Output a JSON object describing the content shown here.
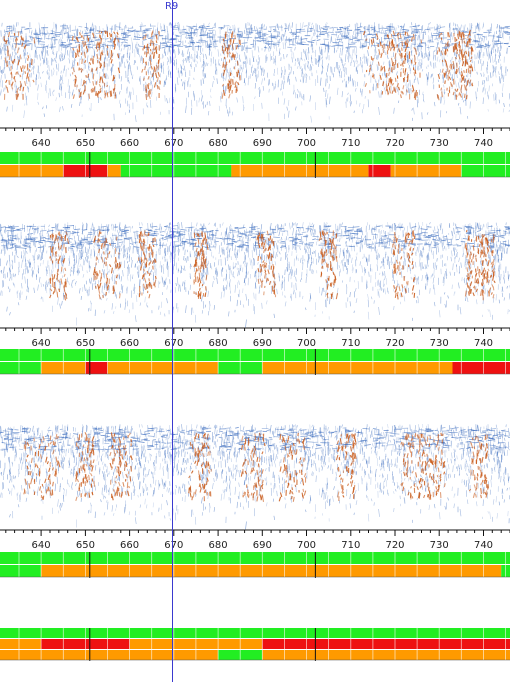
{
  "marker": {
    "label": "R9",
    "position_units": 669.5
  },
  "axis": {
    "min": 630.7,
    "max": 746,
    "labels": [
      "640",
      "650",
      "660",
      "670",
      "680",
      "690",
      "700",
      "710",
      "720",
      "730",
      "740"
    ],
    "major_step": 10,
    "minor_step": 2
  },
  "colors": {
    "green": "#22ee22",
    "orange": "#ff9a00",
    "red": "#ee1111",
    "grid": "#ffffff",
    "scan_blue": "#3f6fbf",
    "scan_orange": "#c85a1a",
    "marker": "#3a3ad0"
  },
  "panels": [
    {
      "id": "panel-1",
      "hotspots": [
        [
          635,
          7
        ],
        [
          650,
          6
        ],
        [
          655,
          5
        ],
        [
          665,
          4
        ],
        [
          683,
          4
        ],
        [
          718,
          10
        ],
        [
          722,
          8
        ],
        [
          732,
          5
        ],
        [
          736,
          3
        ]
      ],
      "tracks": [
        [
          {
            "from": 630.7,
            "to": 746,
            "state": "green"
          }
        ],
        [
          {
            "from": 630.7,
            "to": 645,
            "state": "orange"
          },
          {
            "from": 645,
            "to": 655,
            "state": "red"
          },
          {
            "from": 655,
            "to": 658,
            "state": "orange"
          },
          {
            "from": 658,
            "to": 683,
            "state": "green"
          },
          {
            "from": 683,
            "to": 714,
            "state": "orange"
          },
          {
            "from": 714,
            "to": 719,
            "state": "red"
          },
          {
            "from": 719,
            "to": 735,
            "state": "orange"
          },
          {
            "from": 735,
            "to": 746,
            "state": "green"
          }
        ]
      ]
    },
    {
      "id": "panel-2",
      "hotspots": [
        [
          644,
          4
        ],
        [
          655,
          6
        ],
        [
          664,
          4
        ],
        [
          676,
          3
        ],
        [
          691,
          4
        ],
        [
          705,
          4
        ],
        [
          722,
          5
        ],
        [
          738,
          4
        ],
        [
          741,
          3
        ]
      ],
      "tracks": [
        [
          {
            "from": 630.7,
            "to": 746,
            "state": "green"
          }
        ],
        [
          {
            "from": 630.7,
            "to": 640,
            "state": "green"
          },
          {
            "from": 640,
            "to": 650,
            "state": "orange"
          },
          {
            "from": 650,
            "to": 655,
            "state": "red"
          },
          {
            "from": 655,
            "to": 680,
            "state": "orange"
          },
          {
            "from": 680,
            "to": 690,
            "state": "green"
          },
          {
            "from": 690,
            "to": 733,
            "state": "orange"
          },
          {
            "from": 733,
            "to": 746,
            "state": "red"
          }
        ]
      ]
    },
    {
      "id": "panel-3",
      "hotspots": [
        [
          640,
          8
        ],
        [
          650,
          4
        ],
        [
          658,
          5
        ],
        [
          676,
          5
        ],
        [
          688,
          5
        ],
        [
          697,
          6
        ],
        [
          709,
          4
        ],
        [
          724,
          5
        ],
        [
          729,
          5
        ],
        [
          739,
          4
        ]
      ],
      "tracks": [
        [
          {
            "from": 630.7,
            "to": 746,
            "state": "green"
          }
        ],
        [
          {
            "from": 630.7,
            "to": 640,
            "state": "green"
          },
          {
            "from": 640,
            "to": 690,
            "state": "orange"
          },
          {
            "from": 690,
            "to": 720,
            "state": "orange"
          },
          {
            "from": 720,
            "to": 744,
            "state": "orange"
          },
          {
            "from": 744,
            "to": 746,
            "state": "green"
          }
        ]
      ]
    }
  ],
  "summary_tracks": [
    [
      {
        "from": 630.7,
        "to": 746,
        "state": "green"
      }
    ],
    [
      {
        "from": 630.7,
        "to": 640,
        "state": "orange"
      },
      {
        "from": 640,
        "to": 660,
        "state": "red"
      },
      {
        "from": 660,
        "to": 690,
        "state": "orange"
      },
      {
        "from": 690,
        "to": 746,
        "state": "red"
      }
    ],
    [
      {
        "from": 630.7,
        "to": 680,
        "state": "orange"
      },
      {
        "from": 680,
        "to": 690,
        "state": "green"
      },
      {
        "from": 690,
        "to": 746,
        "state": "orange"
      }
    ]
  ]
}
